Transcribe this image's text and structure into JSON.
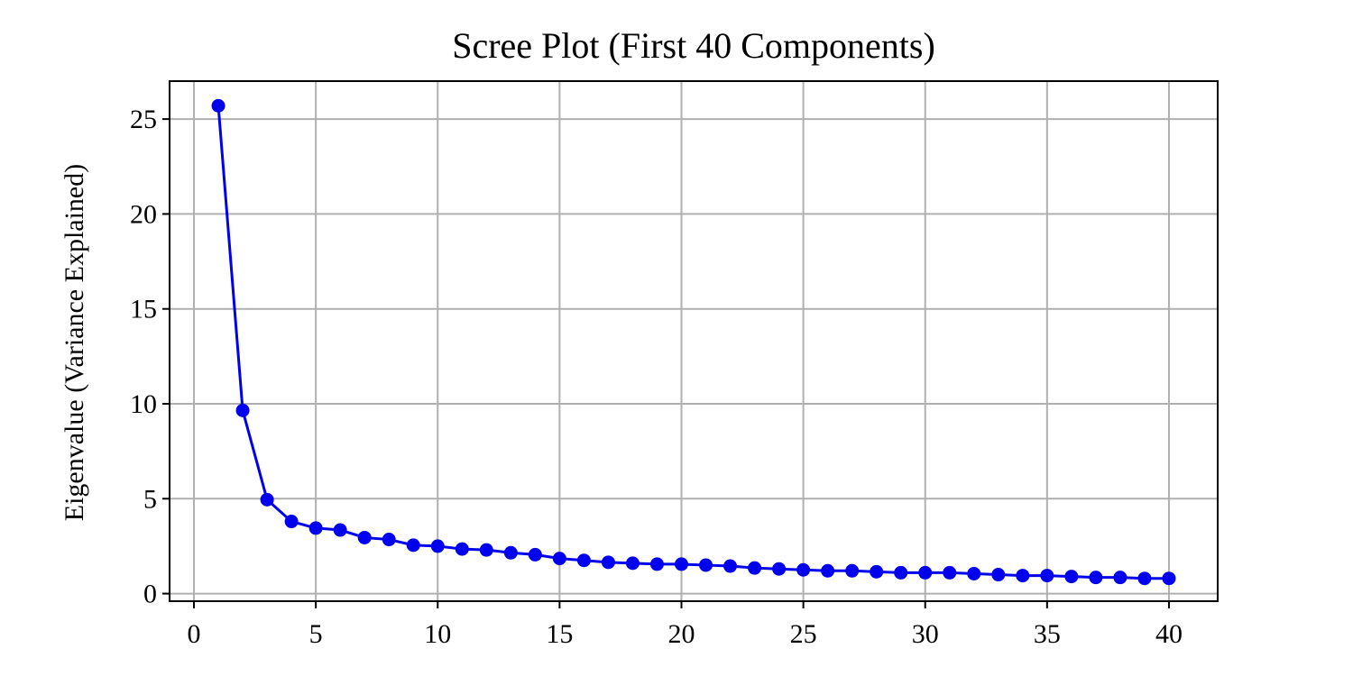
{
  "chart_data": {
    "type": "line",
    "title": "Scree Plot (First 40 Components)",
    "xlabel": "",
    "ylabel": "Eigenvalue (Variance Explained)",
    "xlim": [
      -1,
      42
    ],
    "ylim": [
      -0.4,
      27
    ],
    "xticks": [
      0,
      5,
      10,
      15,
      20,
      25,
      30,
      35,
      40
    ],
    "yticks": [
      0,
      5,
      10,
      15,
      20,
      25
    ],
    "grid": true,
    "legend": "none",
    "colors": {
      "series": "#0000ee",
      "grid": "#b0b0b0",
      "axes": "#000000"
    },
    "series": [
      {
        "marker": "circle",
        "x": [
          1,
          2,
          3,
          4,
          5,
          6,
          7,
          8,
          9,
          10,
          11,
          12,
          13,
          14,
          15,
          16,
          17,
          18,
          19,
          20,
          21,
          22,
          23,
          24,
          25,
          26,
          27,
          28,
          29,
          30,
          31,
          32,
          33,
          34,
          35,
          36,
          37,
          38,
          39,
          40
        ],
        "y": [
          25.7,
          9.65,
          4.95,
          3.8,
          3.45,
          3.35,
          2.95,
          2.85,
          2.55,
          2.5,
          2.35,
          2.3,
          2.15,
          2.05,
          1.85,
          1.75,
          1.65,
          1.6,
          1.55,
          1.55,
          1.5,
          1.45,
          1.35,
          1.3,
          1.25,
          1.2,
          1.2,
          1.15,
          1.1,
          1.1,
          1.1,
          1.05,
          1.0,
          0.95,
          0.95,
          0.9,
          0.85,
          0.85,
          0.8,
          0.8
        ]
      }
    ]
  }
}
